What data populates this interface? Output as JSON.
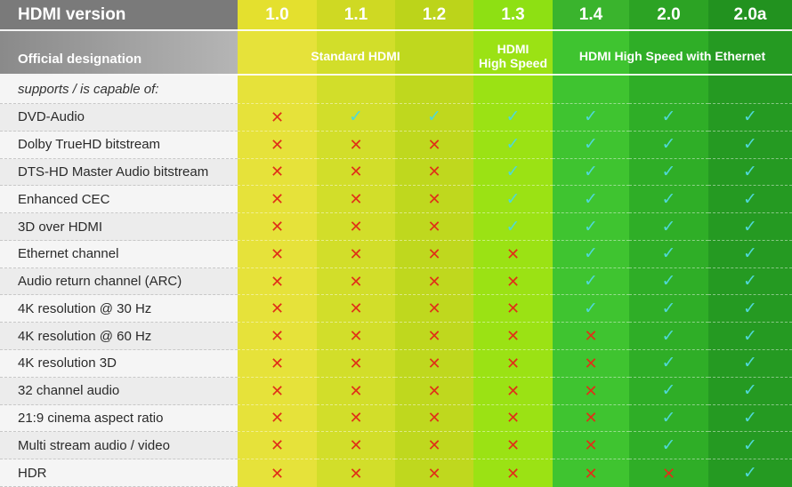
{
  "header": {
    "title": "HDMI version",
    "versions": [
      "1.0",
      "1.1",
      "1.2",
      "1.3",
      "1.4",
      "2.0",
      "2.0a"
    ]
  },
  "designation": {
    "label": "Official designation",
    "groups": [
      {
        "label": "Standard HDMI",
        "span": [
          2,
          5
        ]
      },
      {
        "label": "HDMI\nHigh Speed",
        "span": [
          5,
          6
        ]
      },
      {
        "label": "HDMI High Speed with Ethernet",
        "span": [
          6,
          9
        ]
      }
    ]
  },
  "supports_label": "supports / is capable of:",
  "colors": {
    "columns": [
      "#e6e23a",
      "#d2de2a",
      "#bfd81e",
      "#9be214",
      "#3fc430",
      "#2fae27",
      "#259a22"
    ],
    "header_columns": [
      "#e4e02e",
      "#cfd923",
      "#bcd41a",
      "#8ee013",
      "#3ab42d",
      "#2ca324",
      "#22921f"
    ],
    "check": "#4fd8d8",
    "cross": "#e03018"
  },
  "marks": {
    "yes": "✓",
    "no": "✕"
  },
  "features": [
    {
      "name": "DVD-Audio",
      "support": [
        0,
        1,
        1,
        1,
        1,
        1,
        1
      ]
    },
    {
      "name": "Dolby TrueHD bitstream",
      "support": [
        0,
        0,
        0,
        1,
        1,
        1,
        1
      ]
    },
    {
      "name": "DTS-HD Master Audio bitstream",
      "support": [
        0,
        0,
        0,
        1,
        1,
        1,
        1
      ]
    },
    {
      "name": "Enhanced CEC",
      "support": [
        0,
        0,
        0,
        1,
        1,
        1,
        1
      ]
    },
    {
      "name": "3D over HDMI",
      "support": [
        0,
        0,
        0,
        1,
        1,
        1,
        1
      ]
    },
    {
      "name": "Ethernet channel",
      "support": [
        0,
        0,
        0,
        0,
        1,
        1,
        1
      ]
    },
    {
      "name": "Audio return channel (ARC)",
      "support": [
        0,
        0,
        0,
        0,
        1,
        1,
        1
      ]
    },
    {
      "name": "4K resolution @ 30 Hz",
      "support": [
        0,
        0,
        0,
        0,
        1,
        1,
        1
      ]
    },
    {
      "name": "4K resolution @ 60 Hz",
      "support": [
        0,
        0,
        0,
        0,
        0,
        1,
        1
      ]
    },
    {
      "name": "4K resolution 3D",
      "support": [
        0,
        0,
        0,
        0,
        0,
        1,
        1
      ]
    },
    {
      "name": "32 channel audio",
      "support": [
        0,
        0,
        0,
        0,
        0,
        1,
        1
      ]
    },
    {
      "name": "21:9 cinema aspect ratio",
      "support": [
        0,
        0,
        0,
        0,
        0,
        1,
        1
      ]
    },
    {
      "name": "Multi stream audio / video",
      "support": [
        0,
        0,
        0,
        0,
        0,
        1,
        1
      ]
    },
    {
      "name": "HDR",
      "support": [
        0,
        0,
        0,
        0,
        0,
        0,
        1
      ]
    }
  ]
}
